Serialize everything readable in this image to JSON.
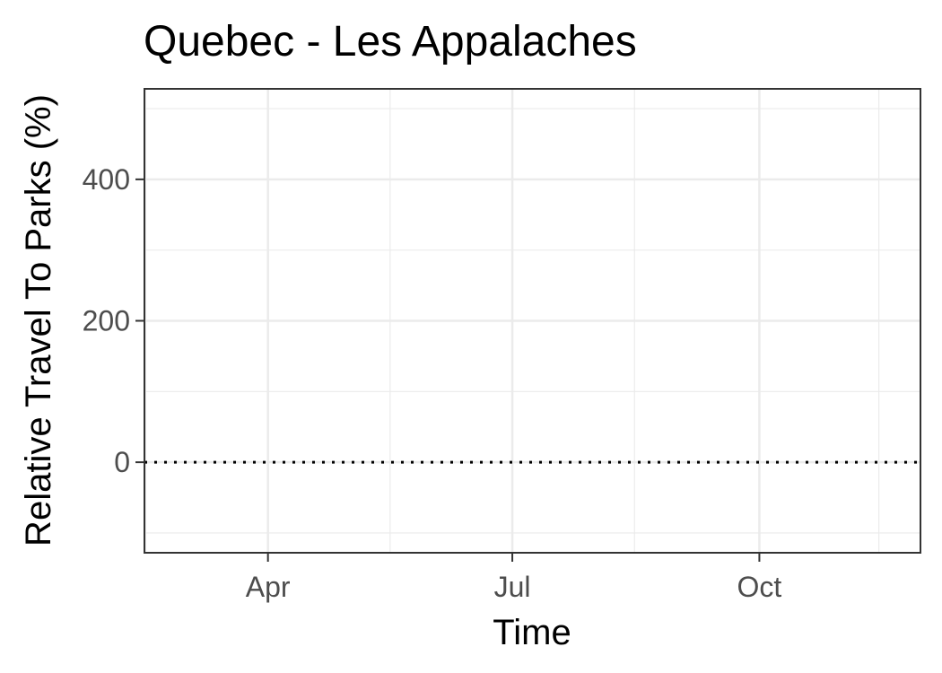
{
  "chart_data": {
    "type": "line",
    "title": "Quebec - Les Appalaches",
    "xlabel": "Time",
    "ylabel": "Relative Travel To Parks (%)",
    "x_ticks": [
      {
        "label": "Apr",
        "date": "2020-04-01"
      },
      {
        "label": "Jul",
        "date": "2020-07-01"
      },
      {
        "label": "Oct",
        "date": "2020-10-01"
      }
    ],
    "y_ticks": [
      0,
      200,
      400
    ],
    "xlim": [
      "2020-02-15",
      "2020-11-30"
    ],
    "ylim": [
      -128,
      528
    ],
    "series": [],
    "reference_line": {
      "y": 0,
      "style": "dotted",
      "color": "#000000"
    },
    "grid": true,
    "theme": "bw"
  }
}
